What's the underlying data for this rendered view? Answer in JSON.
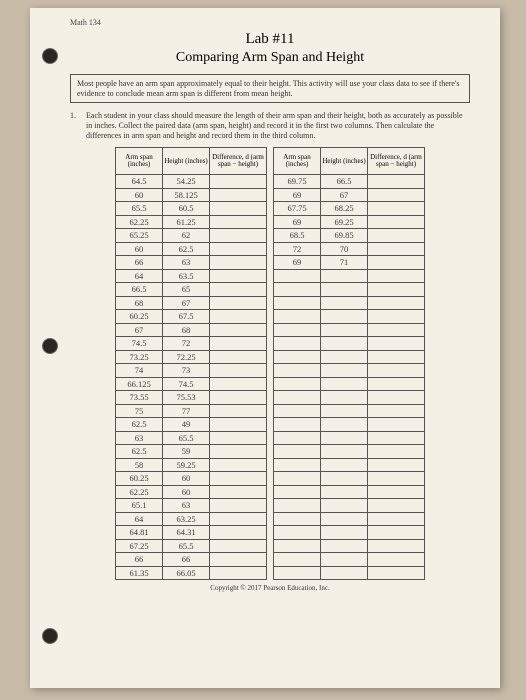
{
  "header_left": "Math 134",
  "header_right": "",
  "lab_title": "Lab #11",
  "lab_subtitle": "Comparing Arm Span and Height",
  "intro": "Most people have an arm span approximately equal to their height. This activity will use your class data to see if there's evidence to conclude mean arm span is different from mean height.",
  "q_num": "1.",
  "q_text": "Each student in your class should measure the length of their arm span and their height, both as accurately as possible in inches. Collect the paired data (arm span, height) and record it in the first two columns. Then calculate the differences in arm span and height and record them in the third column.",
  "col_headers": {
    "arm": "Arm span (inches)",
    "height": "Height (inches)",
    "diff": "Difference, d (arm span − height)"
  },
  "table1_rows": [
    [
      "64.5",
      "54.25",
      ""
    ],
    [
      "60",
      "58.125",
      ""
    ],
    [
      "65.5",
      "60.5",
      ""
    ],
    [
      "62.25",
      "61.25",
      ""
    ],
    [
      "65.25",
      "62",
      ""
    ],
    [
      "60",
      "62.5",
      ""
    ],
    [
      "66",
      "63",
      ""
    ],
    [
      "64",
      "63.5",
      ""
    ],
    [
      "66.5",
      "65",
      ""
    ],
    [
      "68",
      "67",
      ""
    ],
    [
      "60.25",
      "67.5",
      ""
    ],
    [
      "67",
      "68",
      ""
    ],
    [
      "74.5",
      "72",
      ""
    ],
    [
      "73.25",
      "72.25",
      ""
    ],
    [
      "74",
      "73",
      ""
    ],
    [
      "66.125",
      "74.5",
      ""
    ],
    [
      "73.55",
      "75.53",
      ""
    ],
    [
      "75",
      "77",
      ""
    ],
    [
      "62.5",
      "49",
      ""
    ],
    [
      "63",
      "65.5",
      ""
    ],
    [
      "62.5",
      "59",
      ""
    ],
    [
      "58",
      "59.25",
      ""
    ],
    [
      "60.25",
      "60",
      ""
    ],
    [
      "62.25",
      "60",
      ""
    ],
    [
      "65.1",
      "63",
      ""
    ],
    [
      "64",
      "63.25",
      ""
    ],
    [
      "64.81",
      "64.31",
      ""
    ],
    [
      "67.25",
      "65.5",
      ""
    ],
    [
      "66",
      "66",
      ""
    ],
    [
      "61.35",
      "66.05",
      ""
    ]
  ],
  "table2_rows": [
    [
      "69.75",
      "66.5",
      ""
    ],
    [
      "69",
      "67",
      ""
    ],
    [
      "67.75",
      "68.25",
      ""
    ],
    [
      "69",
      "69.25",
      ""
    ],
    [
      "68.5",
      "69.85",
      ""
    ],
    [
      "72",
      "70",
      ""
    ],
    [
      "69",
      "71",
      ""
    ],
    [
      "",
      "",
      ""
    ],
    [
      "",
      "",
      ""
    ],
    [
      "",
      "",
      ""
    ],
    [
      "",
      "",
      ""
    ],
    [
      "",
      "",
      ""
    ],
    [
      "",
      "",
      ""
    ],
    [
      "",
      "",
      ""
    ],
    [
      "",
      "",
      ""
    ],
    [
      "",
      "",
      ""
    ],
    [
      "",
      "",
      ""
    ],
    [
      "",
      "",
      ""
    ],
    [
      "",
      "",
      ""
    ],
    [
      "",
      "",
      ""
    ],
    [
      "",
      "",
      ""
    ],
    [
      "",
      "",
      ""
    ],
    [
      "",
      "",
      ""
    ],
    [
      "",
      "",
      ""
    ],
    [
      "",
      "",
      ""
    ],
    [
      "",
      "",
      ""
    ],
    [
      "",
      "",
      ""
    ],
    [
      "",
      "",
      ""
    ],
    [
      "",
      "",
      ""
    ],
    [
      "",
      "",
      ""
    ]
  ],
  "copyright": "Copyright © 2017 Pearson Education, Inc."
}
